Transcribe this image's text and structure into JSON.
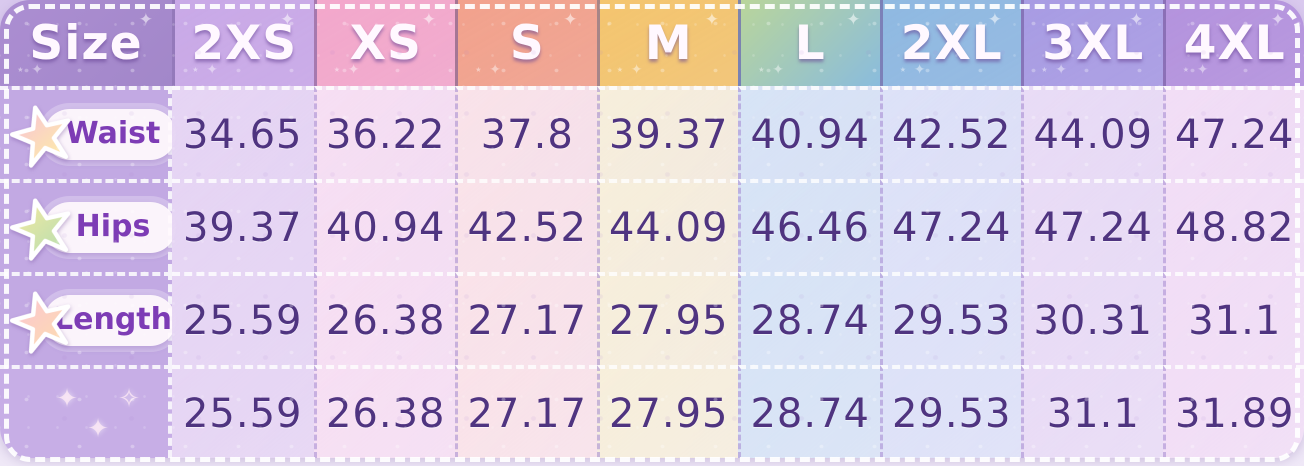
{
  "chart_data": {
    "type": "table",
    "title": "Size",
    "columns": [
      "2XS",
      "XS",
      "S",
      "M",
      "L",
      "2XL",
      "3XL",
      "4XL"
    ],
    "rows": [
      {
        "label": "Waist",
        "values": [
          "34.65",
          "36.22",
          "37.8",
          "39.37",
          "40.94",
          "42.52",
          "44.09",
          "47.24"
        ]
      },
      {
        "label": "Hips",
        "values": [
          "39.37",
          "40.94",
          "42.52",
          "44.09",
          "46.46",
          "47.24",
          "47.24",
          "48.82"
        ]
      },
      {
        "label": "Length",
        "values": [
          "25.59",
          "26.38",
          "27.17",
          "27.95",
          "28.74",
          "29.53",
          "30.31",
          "31.1"
        ]
      },
      {
        "label": "",
        "values": [
          "25.59",
          "26.38",
          "27.17",
          "27.95",
          "28.74",
          "29.53",
          "31.1",
          "31.89"
        ]
      }
    ]
  },
  "icons": {
    "row_marker": "star-icon",
    "empty_row_marker": "sparkle-icon",
    "empty_row_glyphs": "✦ ✧ ✦"
  },
  "colors": {
    "header_size_cell": "#ac8ed2",
    "header_cells": [
      "#c9a9e7",
      "#f3a8cb",
      "#f2a28c",
      "#f4c56e",
      "#a9ceaa",
      "#8fb9e1",
      "#a89ce3",
      "#b493dd"
    ],
    "header_l_gradient": [
      "#b9d59b",
      "#8abcdd"
    ],
    "header_text": "#fff8ff",
    "body_columns": [
      "#e6d5f4",
      "#f7dff3",
      "#fae3e9",
      "#f7efdb",
      "#d7e4f6",
      "#dde2f8",
      "#e9dcf6",
      "#f2def6"
    ],
    "label_column": "#c2a9e3",
    "empty_label_cell": "#c7aee6",
    "value_text": "#4f3480",
    "label_text": "#7d3cb5",
    "star_gradients": [
      [
        "#f9c0da",
        "#fce8ac"
      ],
      [
        "#f5e9a0",
        "#bfdfae"
      ],
      [
        "#fbc4d4",
        "#fcd9b4"
      ]
    ],
    "bottom_strip": "#ece4f5"
  }
}
